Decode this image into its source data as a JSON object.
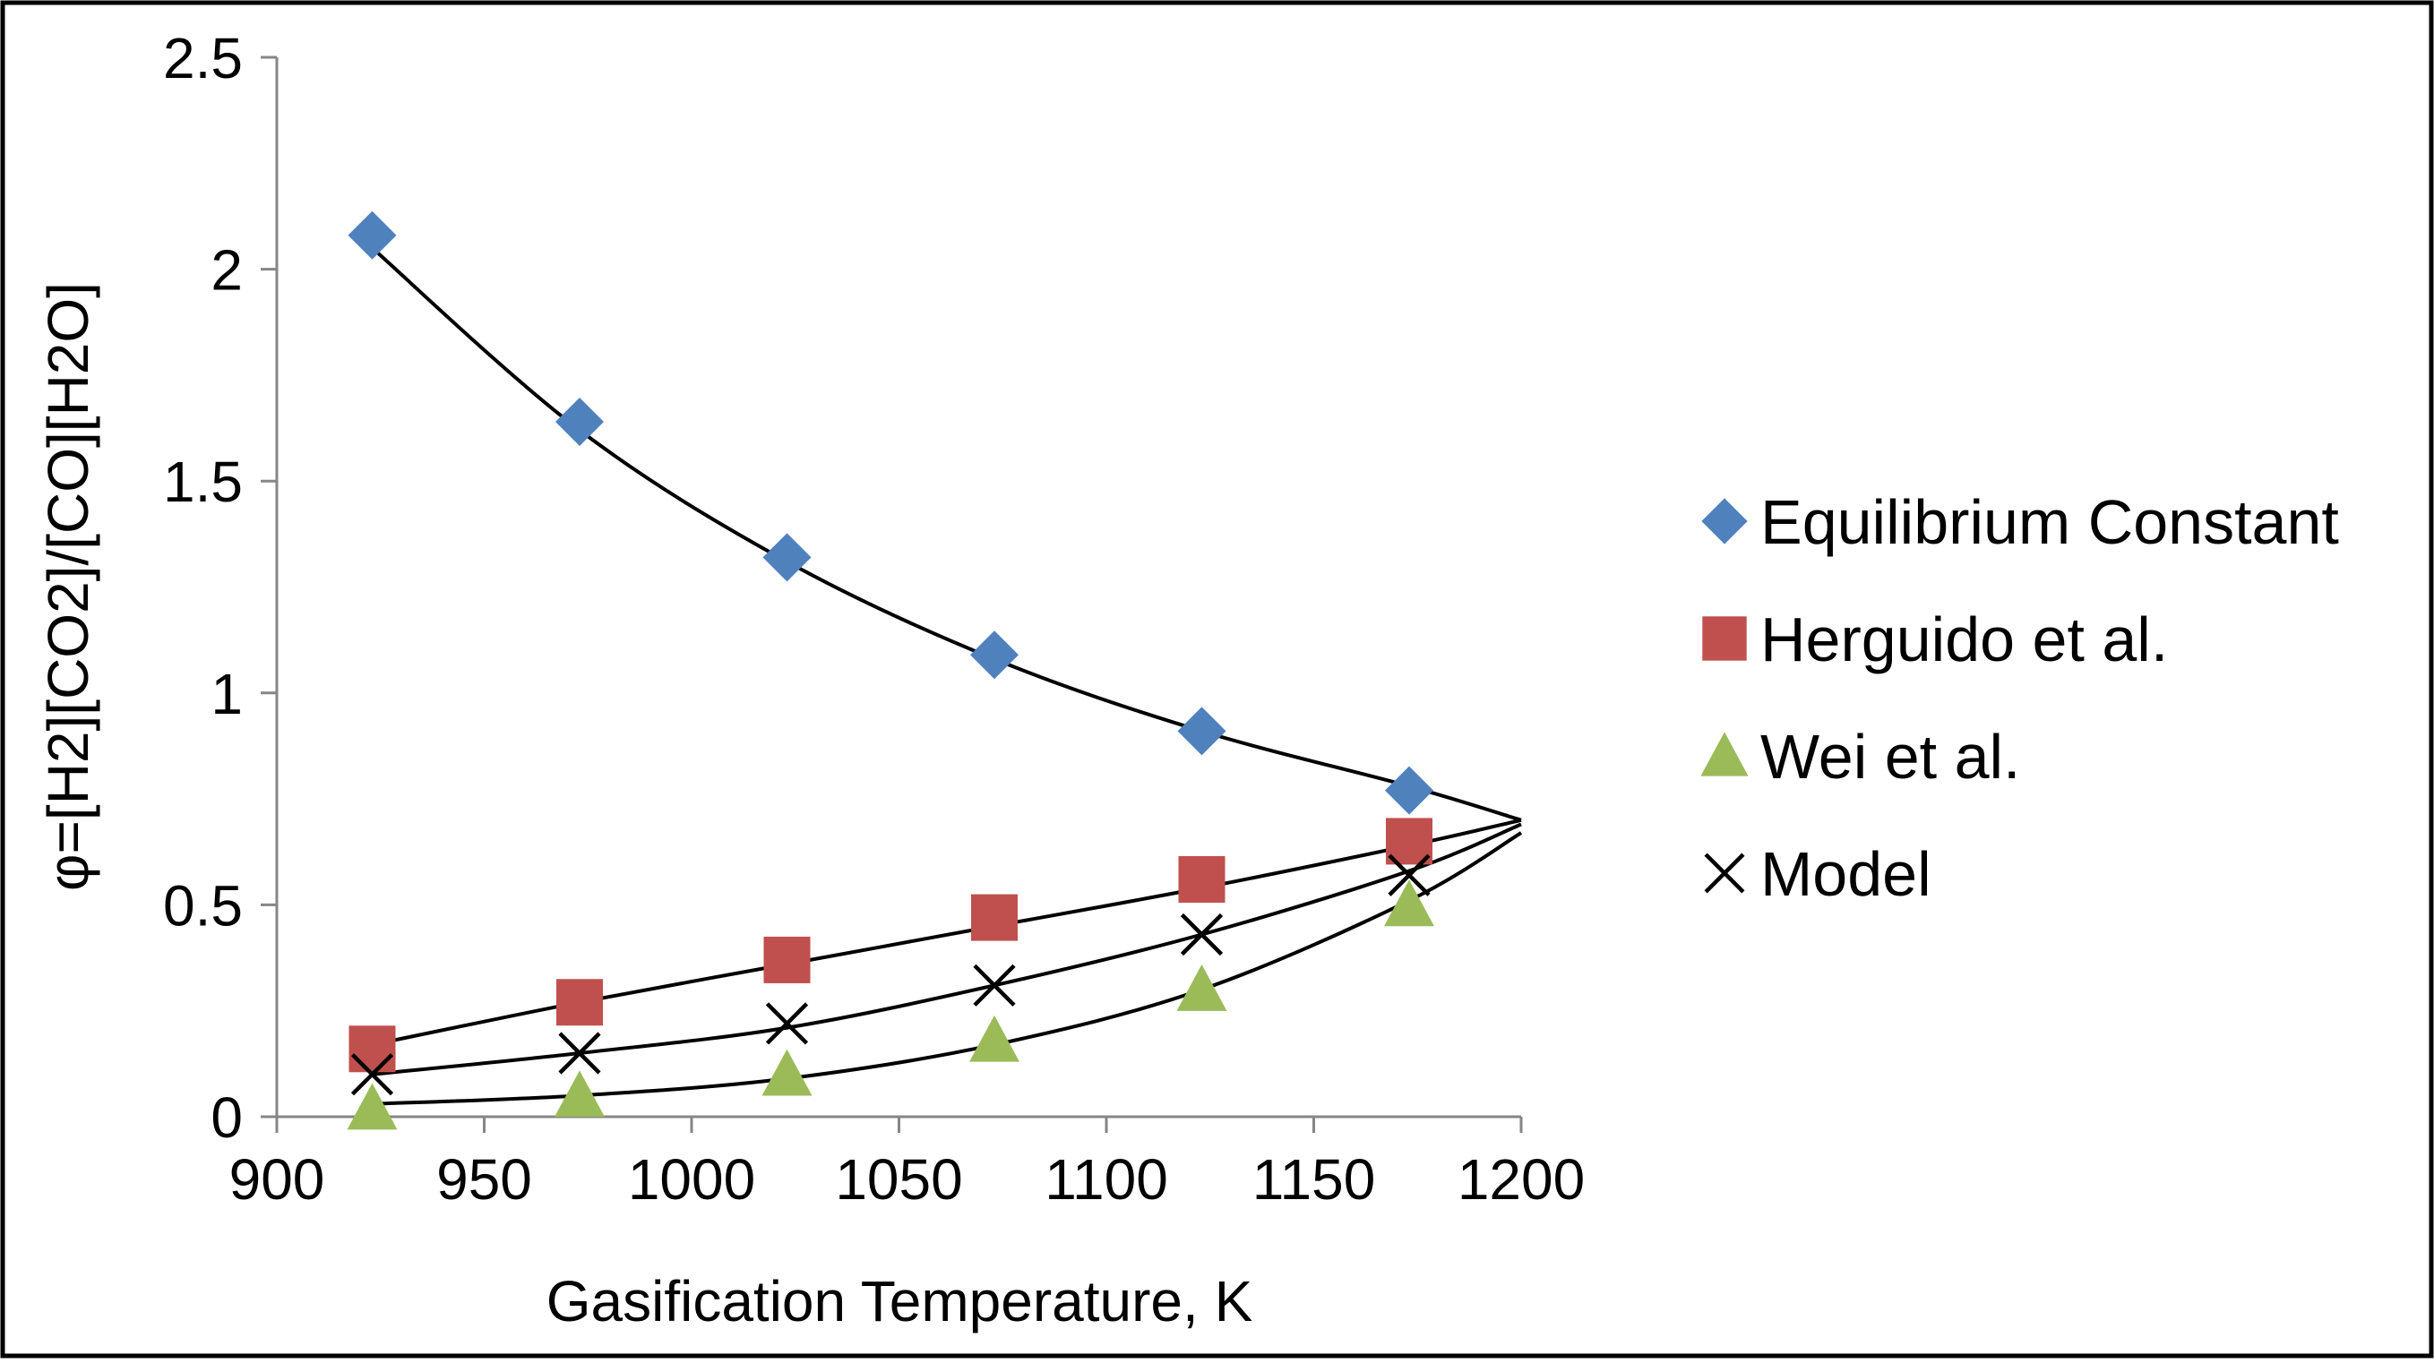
{
  "chart_data": {
    "type": "scatter",
    "title": "",
    "xlabel": "Gasification Temperature, K",
    "ylabel": "φ=[H2][CO2]/[CO][H2O]",
    "xlim": [
      900,
      1200
    ],
    "ylim": [
      0,
      2.5
    ],
    "x_ticks": [
      900,
      950,
      1000,
      1050,
      1100,
      1150,
      1200
    ],
    "y_ticks": [
      0,
      0.5,
      1,
      1.5,
      2,
      2.5
    ],
    "x_tick_labels": [
      "900",
      "950",
      "1000",
      "1050",
      "1100",
      "1150",
      "1200"
    ],
    "y_tick_labels": [
      "0",
      "0.5",
      "1",
      "1.5",
      "2",
      "2.5"
    ],
    "grid": false,
    "legend_position": "right",
    "series": [
      {
        "name": "Equilibrium Constant",
        "marker": "diamond",
        "color": "#4F81BD",
        "x": [
          923,
          973,
          1023,
          1073,
          1123,
          1173
        ],
        "y": [
          2.08,
          1.64,
          1.32,
          1.09,
          0.91,
          0.77
        ],
        "trend": [
          [
            923,
            2.05
          ],
          [
            973,
            1.62
          ],
          [
            1023,
            1.31
          ],
          [
            1073,
            1.08
          ],
          [
            1123,
            0.91
          ],
          [
            1173,
            0.78
          ],
          [
            1200,
            0.7
          ]
        ]
      },
      {
        "name": "Herguido et al.",
        "marker": "square",
        "color": "#C0504D",
        "x": [
          923,
          973,
          1023,
          1073,
          1123,
          1173
        ],
        "y": [
          0.16,
          0.27,
          0.37,
          0.47,
          0.56,
          0.65
        ],
        "trend": [
          [
            923,
            0.17
          ],
          [
            973,
            0.27
          ],
          [
            1023,
            0.36
          ],
          [
            1073,
            0.45
          ],
          [
            1123,
            0.54
          ],
          [
            1173,
            0.64
          ],
          [
            1200,
            0.7
          ]
        ]
      },
      {
        "name": "Wei et al.",
        "marker": "triangle",
        "color": "#9BBB59",
        "x": [
          923,
          973,
          1023,
          1073,
          1123,
          1173
        ],
        "y": [
          0.02,
          0.05,
          0.1,
          0.18,
          0.3,
          0.5
        ],
        "trend": [
          [
            923,
            0.03
          ],
          [
            973,
            0.05
          ],
          [
            1023,
            0.09
          ],
          [
            1073,
            0.17
          ],
          [
            1123,
            0.3
          ],
          [
            1173,
            0.51
          ],
          [
            1200,
            0.67
          ]
        ]
      },
      {
        "name": "Model",
        "marker": "x",
        "color": "#000000",
        "x": [
          923,
          973,
          1023,
          1073,
          1123,
          1173
        ],
        "y": [
          0.1,
          0.15,
          0.22,
          0.31,
          0.43,
          0.57
        ],
        "trend": [
          [
            923,
            0.1
          ],
          [
            973,
            0.15
          ],
          [
            1023,
            0.21
          ],
          [
            1073,
            0.31
          ],
          [
            1123,
            0.43
          ],
          [
            1173,
            0.58
          ],
          [
            1200,
            0.69
          ]
        ]
      }
    ]
  }
}
